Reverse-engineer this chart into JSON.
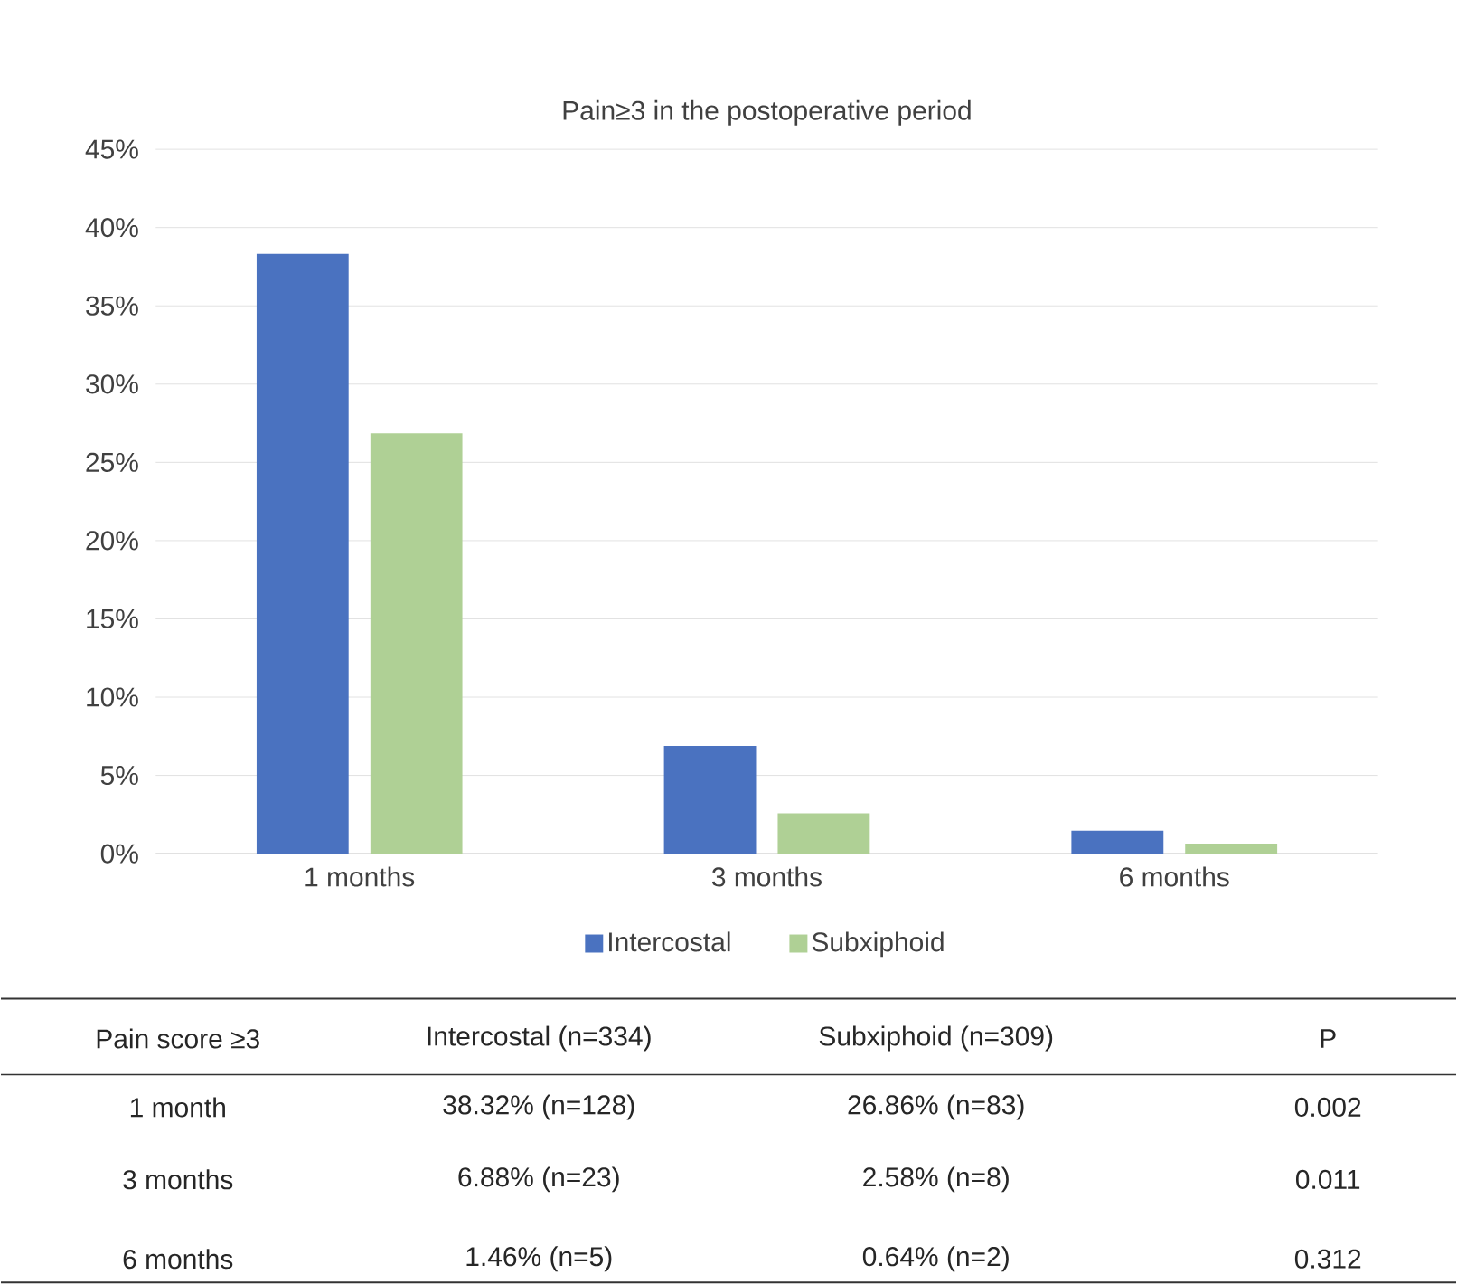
{
  "chart_data": {
    "type": "bar",
    "title": "Pain≥3 in the postoperative period",
    "categories": [
      "1 months",
      "3 months",
      "6 months"
    ],
    "series": [
      {
        "name": "Intercostal",
        "color": "#4a72c0",
        "values": [
          38.32,
          6.88,
          1.46
        ]
      },
      {
        "name": "Subxiphoid",
        "color": "#afd095",
        "values": [
          26.86,
          2.58,
          0.64
        ]
      }
    ],
    "ylim": [
      0,
      45
    ],
    "yticks": [
      {
        "value": 0,
        "label": "0%"
      },
      {
        "value": 5,
        "label": "5%"
      },
      {
        "value": 10,
        "label": "10%"
      },
      {
        "value": 15,
        "label": "15%"
      },
      {
        "value": 20,
        "label": "20%"
      },
      {
        "value": 25,
        "label": "25%"
      },
      {
        "value": 30,
        "label": "30%"
      },
      {
        "value": 35,
        "label": "35%"
      },
      {
        "value": 40,
        "label": "40%"
      },
      {
        "value": 45,
        "label": "45%"
      }
    ],
    "grid": "y",
    "legend": "bottom",
    "annotations": [
      "Pain score ≥3",
      "Intercostal (n=334)",
      "Subxiphoid (n=309)",
      "P",
      "1 month",
      "38.32% (n=128)",
      "26.86% (n=83)",
      "0.002",
      "3 months",
      "6.88% (n=23)",
      "2.58% (n=8)",
      "0.011",
      "6 months",
      "1.46% (n=5)",
      "0.64% (n=2)",
      "0.312"
    ]
  }
}
